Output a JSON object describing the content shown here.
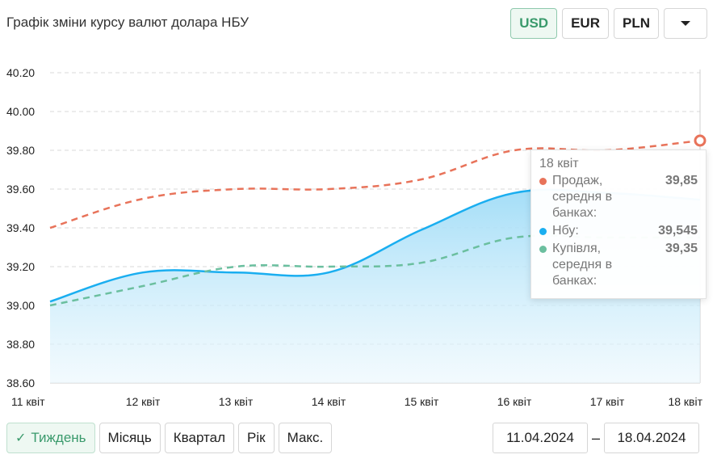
{
  "header": {
    "title": "Графік зміни курсу валют долара НБУ",
    "currencies": [
      {
        "label": "USD",
        "active": true
      },
      {
        "label": "EUR",
        "active": false
      },
      {
        "label": "PLN",
        "active": false
      }
    ],
    "more_icon": "caret-down-icon"
  },
  "chart_data": {
    "type": "line",
    "title": "",
    "xlabel": "",
    "ylabel": "",
    "categories": [
      "11 квіт",
      "12 квіт",
      "13 квіт",
      "14 квіт",
      "15 квіт",
      "16 квіт",
      "17 квіт",
      "18 квіт"
    ],
    "yticks": [
      "38.60",
      "38.80",
      "39.00",
      "39.20",
      "39.40",
      "39.60",
      "39.80",
      "40.00",
      "40.20"
    ],
    "ylim": [
      38.6,
      40.2
    ],
    "grid": true,
    "series": [
      {
        "name": "Продаж, середня в банках",
        "style": "dashed",
        "color": "#e8735a",
        "values": [
          39.4,
          39.55,
          39.6,
          39.6,
          39.65,
          39.8,
          39.8,
          39.85
        ]
      },
      {
        "name": "Нбу",
        "style": "solid-area",
        "color": "#1aaef0",
        "values": [
          39.02,
          39.17,
          39.17,
          39.17,
          39.39,
          39.58,
          39.58,
          39.545
        ]
      },
      {
        "name": "Купівля, середня в банках",
        "style": "dashed",
        "color": "#6bbf9f",
        "values": [
          39.0,
          39.1,
          39.2,
          39.2,
          39.22,
          39.35,
          39.35,
          39.35
        ]
      }
    ]
  },
  "tooltip": {
    "date": "18 квіт",
    "rows": [
      {
        "label": "Продаж, середня в банках:",
        "value": "39,85",
        "color": "#e8735a"
      },
      {
        "label": "Нбу:",
        "value": "39,545",
        "color": "#1aaef0"
      },
      {
        "label": "Купівля, середня в банках:",
        "value": "39,35",
        "color": "#6bbf9f"
      }
    ]
  },
  "periods": [
    {
      "label": "Тиждень",
      "active": true
    },
    {
      "label": "Місяць",
      "active": false
    },
    {
      "label": "Квартал",
      "active": false
    },
    {
      "label": "Рік",
      "active": false
    },
    {
      "label": "Макс.",
      "active": false
    }
  ],
  "date_range": {
    "from": "11.04.2024",
    "separator": "–",
    "to": "18.04.2024"
  },
  "colors": {
    "accent": "#3a9a6c",
    "sell": "#e8735a",
    "nbu": "#1aaef0",
    "buy": "#6bbf9f"
  }
}
